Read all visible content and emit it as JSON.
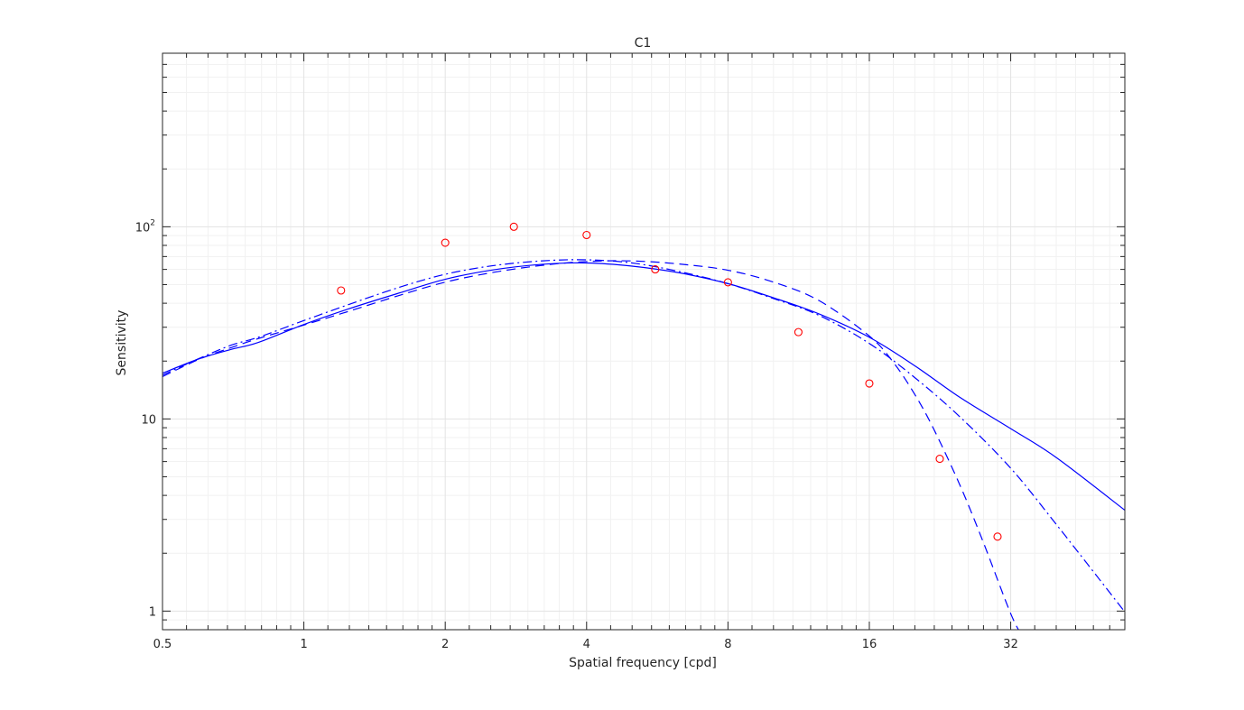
{
  "chart_data": {
    "type": "line",
    "title": "C1",
    "xlabel": "Spatial frequency [cpd]",
    "ylabel": "Sensitivity",
    "xscale": "log2",
    "yscale": "log10",
    "xlim": [
      0.5,
      56
    ],
    "ylim": [
      0.8,
      800
    ],
    "grid": true,
    "minor_grid": true,
    "x_ticks": [
      {
        "value": 0.5,
        "label": "0.5"
      },
      {
        "value": 1,
        "label": "1"
      },
      {
        "value": 2,
        "label": "2"
      },
      {
        "value": 4,
        "label": "4"
      },
      {
        "value": 8,
        "label": "8"
      },
      {
        "value": 16,
        "label": "16"
      },
      {
        "value": 32,
        "label": "32"
      }
    ],
    "y_ticks": [
      {
        "value": 1,
        "label": "1",
        "sup": ""
      },
      {
        "value": 10,
        "label": "10",
        "sup": ""
      },
      {
        "value": 100,
        "label": "10",
        "sup": "2"
      }
    ],
    "colors": {
      "lines": "#0000ff",
      "markers": "#ff0000",
      "axes": "#262626",
      "grid": "#e3e3e3",
      "minor_grid": "#f1f1f1"
    },
    "series": [
      {
        "style": "solid",
        "x": [
          0.5,
          0.6,
          0.7,
          0.8,
          1.0,
          1.25,
          1.6,
          2.0,
          2.5,
          3.2,
          4.0,
          5.0,
          6.3,
          8.0,
          10.0,
          12.5,
          16.0,
          20.0,
          25.0,
          32.0,
          40.0,
          56.0
        ],
        "y": [
          17.3,
          20.6,
          23.0,
          25.0,
          31.0,
          37.5,
          45.3,
          53.3,
          59.4,
          63.7,
          64.8,
          62.4,
          57.6,
          50.6,
          42.7,
          35.2,
          26.6,
          18.9,
          12.9,
          8.9,
          6.3,
          3.35
        ]
      },
      {
        "style": "dashed",
        "x": [
          0.5,
          0.6,
          0.7,
          0.8,
          1.0,
          1.25,
          1.6,
          2.0,
          2.5,
          3.2,
          4.0,
          5.0,
          6.3,
          8.0,
          10.0,
          12.5,
          16.0,
          18.0,
          20.0,
          22.0,
          25.0,
          28.0,
          32.0,
          34.0
        ],
        "y": [
          16.6,
          20.5,
          23.5,
          26.2,
          30.8,
          36.4,
          44.0,
          51.5,
          57.6,
          62.9,
          65.9,
          66.4,
          64.0,
          59.4,
          51.5,
          41.3,
          27.0,
          19.7,
          13.4,
          8.74,
          4.47,
          2.27,
          0.97,
          0.73
        ]
      },
      {
        "style": "dashdot",
        "x": [
          0.5,
          0.6,
          0.7,
          0.8,
          1.0,
          1.25,
          1.6,
          2.0,
          2.5,
          3.2,
          4.0,
          5.0,
          6.3,
          8.0,
          10.0,
          12.5,
          16.0,
          20.0,
          25.0,
          32.0,
          40.0,
          56.0
        ],
        "y": [
          16.9,
          20.7,
          24.2,
          26.6,
          32.5,
          39.5,
          48.5,
          56.6,
          62.5,
          66.4,
          67.3,
          64.8,
          58.5,
          50.6,
          42.3,
          34.6,
          24.7,
          16.4,
          10.2,
          5.54,
          2.83,
          0.99
        ]
      },
      {
        "style": "markers",
        "x": [
          1.2,
          2.0,
          2.8,
          4.0,
          5.6,
          8.0,
          11.3,
          16.0,
          22.6,
          30.0
        ],
        "y": [
          46.6,
          82.6,
          100.0,
          90.6,
          60.0,
          51.4,
          28.3,
          15.3,
          6.2,
          2.44
        ]
      }
    ]
  }
}
